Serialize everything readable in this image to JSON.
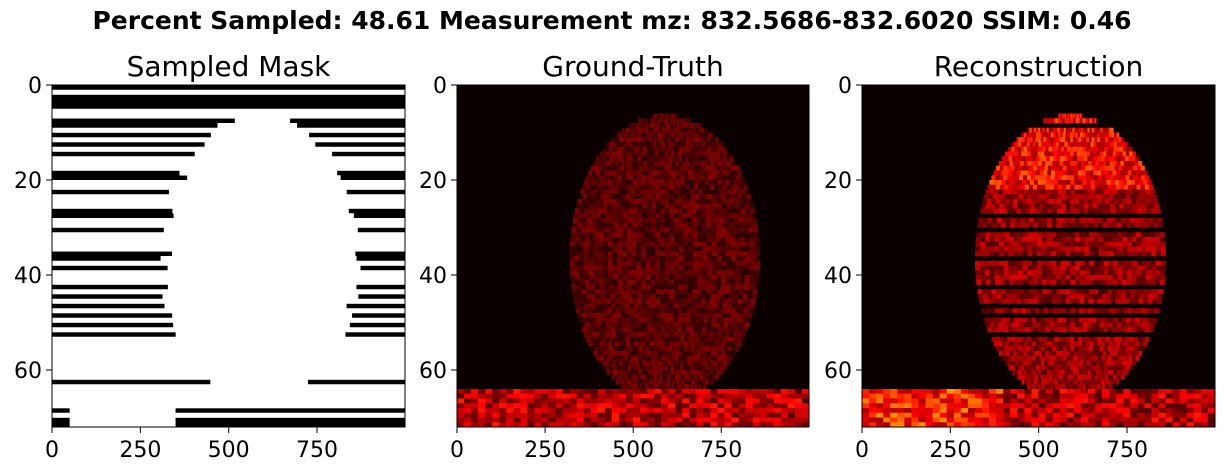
{
  "suptitle": "Percent Sampled: 48.61  Measurement mz: 832.5686-832.6020  SSIM: 0.46",
  "chart_data": [
    {
      "type": "heatmap",
      "title": "Sampled Mask",
      "colormap": "gray",
      "x_ticks": [
        0,
        250,
        500,
        750
      ],
      "y_ticks": [
        0,
        20,
        40,
        60
      ],
      "xlim": [
        0,
        999
      ],
      "ylim": [
        72,
        0
      ]
    },
    {
      "type": "heatmap",
      "title": "Ground-Truth",
      "colormap": "hot",
      "x_ticks": [
        0,
        250,
        500,
        750
      ],
      "y_ticks": [
        0,
        20,
        40,
        60
      ],
      "xlim": [
        0,
        999
      ],
      "ylim": [
        72,
        0
      ]
    },
    {
      "type": "heatmap",
      "title": "Reconstruction",
      "colormap": "hot",
      "x_ticks": [
        0,
        250,
        500,
        750
      ],
      "y_ticks": [
        0,
        20,
        40,
        60
      ],
      "xlim": [
        0,
        999
      ],
      "ylim": [
        72,
        0
      ]
    }
  ]
}
